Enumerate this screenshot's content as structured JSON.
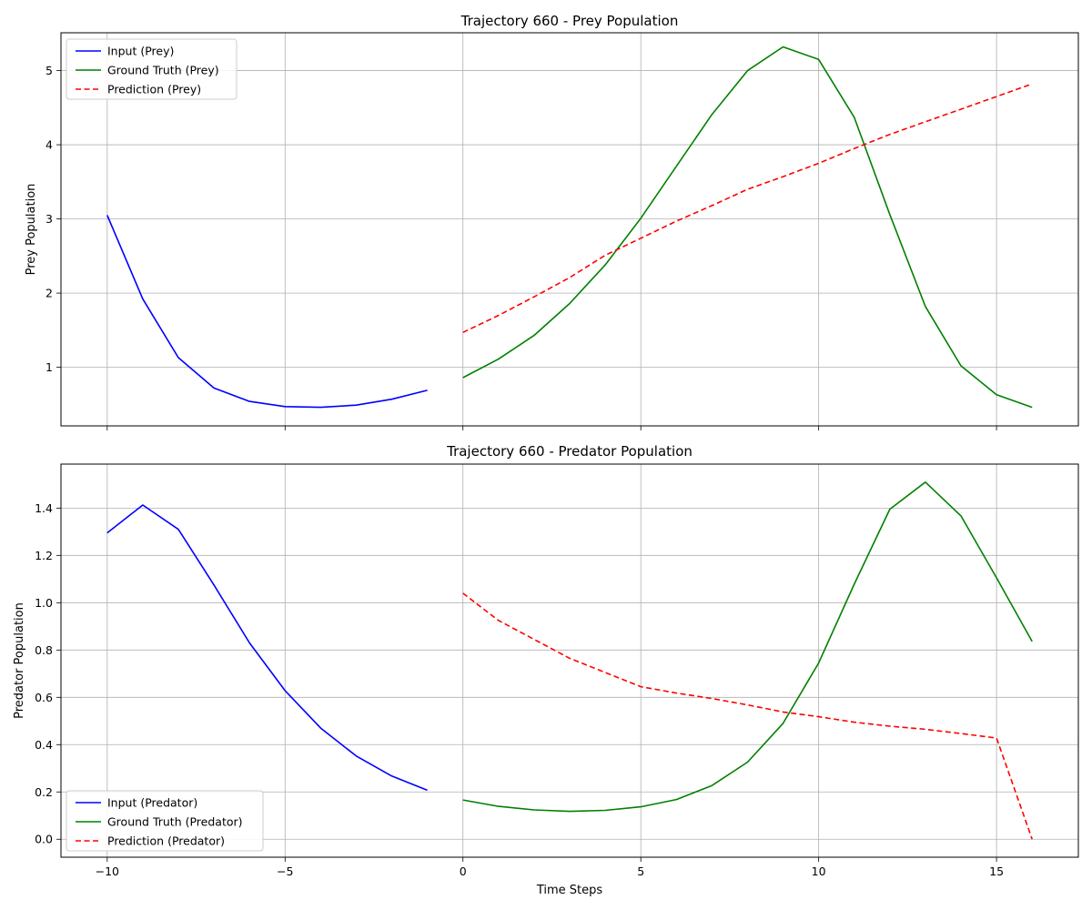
{
  "xlabel": "Time Steps",
  "chart_data": [
    {
      "type": "line",
      "title": "Trajectory 660 - Prey Population",
      "xlabel": "",
      "ylabel": "Prey Population",
      "xlim": [
        -11.3,
        17.3
      ],
      "ylim": [
        0.21,
        5.51
      ],
      "xticks": [
        -10,
        -5,
        0,
        5,
        10,
        15
      ],
      "xticklabels": [
        "",
        "",
        "",
        "",
        "",
        ""
      ],
      "yticks": [
        1,
        2,
        3,
        4,
        5
      ],
      "yticklabels": [
        "1",
        "2",
        "3",
        "4",
        "5"
      ],
      "grid": true,
      "legend_position": "top-left",
      "series": [
        {
          "name": "Input (Prey)",
          "color": "#0000ff",
          "dash": "solid",
          "x": [
            -10,
            -9,
            -8,
            -7,
            -6,
            -5,
            -4,
            -3,
            -2,
            -1
          ],
          "y": [
            3.05,
            1.92,
            1.13,
            0.72,
            0.54,
            0.47,
            0.46,
            0.49,
            0.57,
            0.69
          ]
        },
        {
          "name": "Ground Truth (Prey)",
          "color": "#008000",
          "dash": "solid",
          "x": [
            0,
            1,
            2,
            3,
            4,
            5,
            6,
            7,
            8,
            9,
            10,
            11,
            12,
            13,
            14,
            15,
            16
          ],
          "y": [
            0.86,
            1.11,
            1.43,
            1.86,
            2.38,
            3.01,
            3.71,
            4.41,
            5.0,
            5.32,
            5.15,
            4.37,
            3.06,
            1.82,
            1.02,
            0.63,
            0.46
          ]
        },
        {
          "name": "Prediction (Prey)",
          "color": "#ff0000",
          "dash": "dashed",
          "x": [
            0,
            1,
            2,
            3,
            4,
            5,
            6,
            7,
            8,
            9,
            10,
            11,
            12,
            13,
            14,
            15,
            16
          ],
          "y": [
            1.47,
            1.7,
            1.95,
            2.21,
            2.51,
            2.74,
            2.97,
            3.18,
            3.4,
            3.57,
            3.75,
            3.95,
            4.14,
            4.31,
            4.48,
            4.65,
            4.82
          ]
        }
      ]
    },
    {
      "type": "line",
      "title": "Trajectory 660 - Predator Population",
      "xlabel": "Time Steps",
      "ylabel": "Predator Population",
      "xlim": [
        -11.3,
        17.3
      ],
      "ylim": [
        -0.076,
        1.586
      ],
      "xticks": [
        -10,
        -5,
        0,
        5,
        10,
        15
      ],
      "xticklabels": [
        "−10",
        "−5",
        "0",
        "5",
        "10",
        "15"
      ],
      "yticks": [
        0.0,
        0.2,
        0.4,
        0.6,
        0.8,
        1.0,
        1.2,
        1.4
      ],
      "yticklabels": [
        "0.0",
        "0.2",
        "0.4",
        "0.6",
        "0.8",
        "1.0",
        "1.2",
        "1.4"
      ],
      "grid": true,
      "legend_position": "bottom-left",
      "series": [
        {
          "name": "Input (Predator)",
          "color": "#0000ff",
          "dash": "solid",
          "x": [
            -10,
            -9,
            -8,
            -7,
            -6,
            -5,
            -4,
            -3,
            -2,
            -1
          ],
          "y": [
            1.295,
            1.413,
            1.31,
            1.075,
            0.83,
            0.628,
            0.47,
            0.352,
            0.267,
            0.207
          ]
        },
        {
          "name": "Ground Truth (Predator)",
          "color": "#008000",
          "dash": "solid",
          "x": [
            0,
            1,
            2,
            3,
            4,
            5,
            6,
            7,
            8,
            9,
            10,
            11,
            12,
            13,
            14,
            15,
            16
          ],
          "y": [
            0.166,
            0.139,
            0.124,
            0.118,
            0.122,
            0.137,
            0.168,
            0.227,
            0.326,
            0.49,
            0.745,
            1.078,
            1.395,
            1.51,
            1.367,
            1.105,
            0.836
          ]
        },
        {
          "name": "Prediction (Predator)",
          "color": "#ff0000",
          "dash": "dashed",
          "x": [
            0,
            1,
            2,
            3,
            4,
            5,
            6,
            7,
            8,
            9,
            10,
            11,
            12,
            13,
            14,
            15,
            16
          ],
          "y": [
            1.04,
            0.925,
            0.845,
            0.765,
            0.705,
            0.645,
            0.618,
            0.595,
            0.568,
            0.538,
            0.518,
            0.495,
            0.478,
            0.465,
            0.447,
            0.428,
            0.0
          ]
        }
      ]
    }
  ]
}
